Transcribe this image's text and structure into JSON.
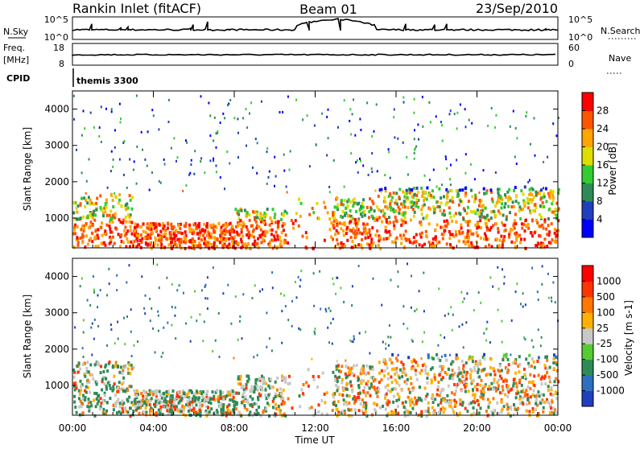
{
  "header": {
    "station": "Rankin Inlet (fitACF)",
    "beam": "Beam 01",
    "date": "23/Sep/2010"
  },
  "top_panels": {
    "nsky_label": "N.Sky",
    "nsky_ticks": [
      "10^5",
      "10^0"
    ],
    "nsearch_label": "N.Search",
    "nsearch_ticks": [
      "10^5",
      "10^0"
    ],
    "freq_label": "Freq.",
    "freq_unit": "[MHz]",
    "freq_ticks": [
      "18",
      "8"
    ],
    "nave_label": "Nave",
    "nave_ticks": [
      "60",
      "0"
    ],
    "cpid_label": "CPID",
    "cpid_value": "themis 3300"
  },
  "x_axis": {
    "label": "Time UT",
    "ticks": [
      "00:00",
      "04:00",
      "08:00",
      "12:00",
      "16:00",
      "20:00",
      "00:00"
    ]
  },
  "chart_data": [
    {
      "type": "heatmap",
      "name": "power",
      "ylabel": "Slant Range [km]",
      "y_ticks": [
        1000,
        2000,
        3000,
        4000
      ],
      "ylim": [
        180,
        4500
      ],
      "xlim_hours": [
        0,
        24
      ],
      "colorbar_label": "Power [dB]",
      "colorbar_ticks": [
        "4",
        "8",
        "12",
        "16",
        "20",
        "24",
        "28"
      ],
      "colorbar_colors": [
        "#0000ff",
        "#1f3fbf",
        "#2e8b57",
        "#33cc33",
        "#dddd00",
        "#ffa500",
        "#ff5500",
        "#ff0000"
      ]
    },
    {
      "type": "heatmap",
      "name": "velocity",
      "ylabel": "Slant Range [km]",
      "y_ticks": [
        1000,
        2000,
        3000,
        4000
      ],
      "ylim": [
        180,
        4500
      ],
      "xlim_hours": [
        0,
        24
      ],
      "colorbar_label": "Velocity [m s-1]",
      "colorbar_ticks": [
        "1000",
        "500",
        "100",
        "25",
        "-25",
        "-100",
        "-500",
        "-1000"
      ],
      "colorbar_colors": [
        "#1f3fbf",
        "#2e6fbf",
        "#2e8b57",
        "#55cc33",
        "#c8c8c8",
        "#ffb000",
        "#ff7700",
        "#ff3300",
        "#ff0000"
      ]
    }
  ]
}
